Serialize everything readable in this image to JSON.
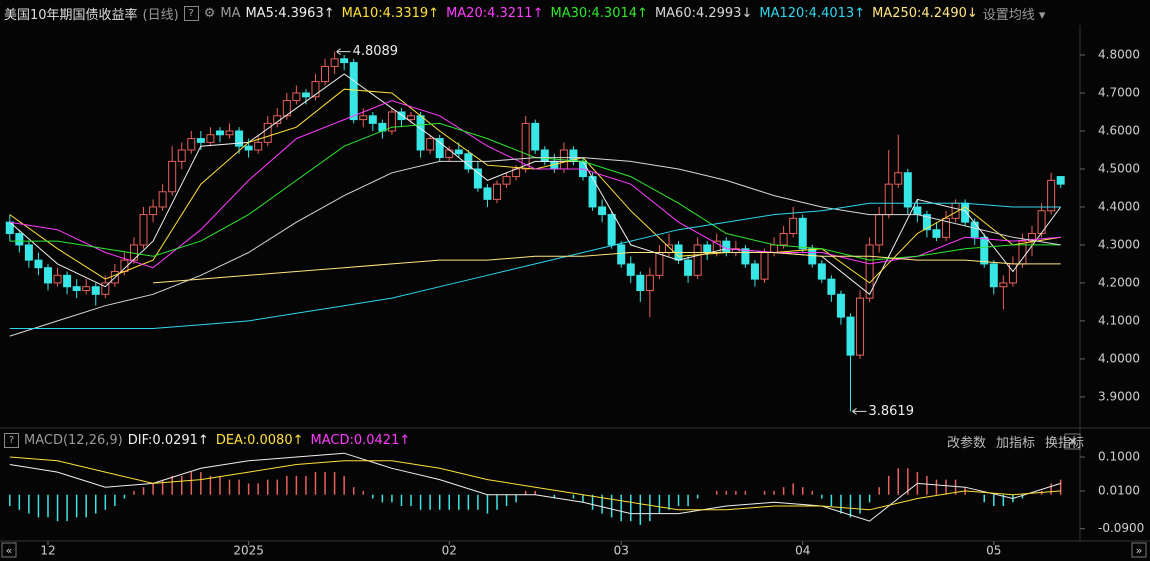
{
  "header": {
    "title": "美国10年期国债收益率",
    "period": "(日线)",
    "ma_label": "MA",
    "settings": "设置均线"
  },
  "buttons": [
    "改参数",
    "加指标",
    "换指标"
  ],
  "chart_data": [
    {
      "type": "candlestick",
      "up_color": "#e8615a",
      "down_color": "#38e6e6",
      "xlim": [
        -0.5,
        111.5
      ],
      "ylim": [
        3.826,
        4.879
      ],
      "yticks": [
        {
          "value": 4.8,
          "label": "4.8000"
        },
        {
          "value": 4.7,
          "label": "4.7000"
        },
        {
          "value": 4.6,
          "label": "4.6000"
        },
        {
          "value": 4.5,
          "label": "4.5000"
        },
        {
          "value": 4.4,
          "label": "4.4000"
        },
        {
          "value": 4.3,
          "label": "4.3000"
        },
        {
          "value": 4.2,
          "label": "4.2000"
        },
        {
          "value": 4.1,
          "label": "4.1000"
        },
        {
          "value": 4.0,
          "label": "4.0000"
        },
        {
          "value": 3.9,
          "label": "3.9000"
        }
      ],
      "xticks": [
        {
          "value": 4,
          "label": "12"
        },
        {
          "value": 25,
          "label": "2025"
        },
        {
          "value": 46,
          "label": "02"
        },
        {
          "value": 64,
          "label": "03"
        },
        {
          "value": 83,
          "label": "04"
        },
        {
          "value": 103,
          "label": "05"
        }
      ],
      "candles": [
        [
          4.36,
          4.38,
          4.31,
          4.33
        ],
        [
          4.33,
          4.34,
          4.28,
          4.3
        ],
        [
          4.3,
          4.31,
          4.24,
          4.26
        ],
        [
          4.26,
          4.28,
          4.22,
          4.24
        ],
        [
          4.24,
          4.25,
          4.18,
          4.2
        ],
        [
          4.2,
          4.24,
          4.19,
          4.22
        ],
        [
          4.22,
          4.23,
          4.17,
          4.19
        ],
        [
          4.19,
          4.21,
          4.16,
          4.18
        ],
        [
          4.18,
          4.21,
          4.17,
          4.19
        ],
        [
          4.19,
          4.2,
          4.14,
          4.17
        ],
        [
          4.17,
          4.22,
          4.16,
          4.2
        ],
        [
          4.2,
          4.25,
          4.19,
          4.23
        ],
        [
          4.23,
          4.28,
          4.22,
          4.26
        ],
        [
          4.26,
          4.32,
          4.25,
          4.3
        ],
        [
          4.3,
          4.4,
          4.29,
          4.38
        ],
        [
          4.38,
          4.42,
          4.36,
          4.4
        ],
        [
          4.4,
          4.46,
          4.39,
          4.44
        ],
        [
          4.44,
          4.56,
          4.43,
          4.52
        ],
        [
          4.52,
          4.57,
          4.5,
          4.55
        ],
        [
          4.55,
          4.6,
          4.54,
          4.58
        ],
        [
          4.58,
          4.6,
          4.55,
          4.57
        ],
        [
          4.57,
          4.61,
          4.56,
          4.59
        ],
        [
          4.6,
          4.61,
          4.57,
          4.59
        ],
        [
          4.59,
          4.62,
          4.58,
          4.6
        ],
        [
          4.6,
          4.61,
          4.54,
          4.56
        ],
        [
          4.56,
          4.58,
          4.53,
          4.55
        ],
        [
          4.55,
          4.59,
          4.54,
          4.57
        ],
        [
          4.57,
          4.64,
          4.56,
          4.62
        ],
        [
          4.62,
          4.66,
          4.61,
          4.64
        ],
        [
          4.64,
          4.7,
          4.63,
          4.68
        ],
        [
          4.68,
          4.72,
          4.67,
          4.7
        ],
        [
          4.7,
          4.71,
          4.67,
          4.69
        ],
        [
          4.69,
          4.75,
          4.68,
          4.73
        ],
        [
          4.73,
          4.79,
          4.72,
          4.77
        ],
        [
          4.77,
          4.8089,
          4.75,
          4.79
        ],
        [
          4.79,
          4.8,
          4.76,
          4.78
        ],
        [
          4.78,
          4.79,
          4.62,
          4.63
        ],
        [
          4.63,
          4.66,
          4.61,
          4.64
        ],
        [
          4.64,
          4.65,
          4.6,
          4.62
        ],
        [
          4.62,
          4.63,
          4.58,
          4.6
        ],
        [
          4.6,
          4.66,
          4.59,
          4.65
        ],
        [
          4.65,
          4.66,
          4.61,
          4.63
        ],
        [
          4.63,
          4.65,
          4.62,
          4.64
        ],
        [
          4.64,
          4.65,
          4.53,
          4.55
        ],
        [
          4.55,
          4.59,
          4.54,
          4.58
        ],
        [
          4.58,
          4.59,
          4.52,
          4.53
        ],
        [
          4.53,
          4.56,
          4.52,
          4.55
        ],
        [
          4.55,
          4.57,
          4.53,
          4.54
        ],
        [
          4.54,
          4.55,
          4.49,
          4.5
        ],
        [
          4.5,
          4.52,
          4.44,
          4.45
        ],
        [
          4.45,
          4.46,
          4.4,
          4.42
        ],
        [
          4.42,
          4.47,
          4.41,
          4.46
        ],
        [
          4.46,
          4.49,
          4.45,
          4.48
        ],
        [
          4.48,
          4.51,
          4.47,
          4.5
        ],
        [
          4.5,
          4.64,
          4.49,
          4.62
        ],
        [
          4.62,
          4.63,
          4.54,
          4.55
        ],
        [
          4.55,
          4.56,
          4.51,
          4.52
        ],
        [
          4.52,
          4.54,
          4.49,
          4.5
        ],
        [
          4.5,
          4.57,
          4.49,
          4.55
        ],
        [
          4.55,
          4.56,
          4.51,
          4.52
        ],
        [
          4.52,
          4.53,
          4.47,
          4.48
        ],
        [
          4.48,
          4.49,
          4.39,
          4.4
        ],
        [
          4.4,
          4.42,
          4.36,
          4.38
        ],
        [
          4.38,
          4.39,
          4.29,
          4.3
        ],
        [
          4.3,
          4.31,
          4.24,
          4.25
        ],
        [
          4.25,
          4.27,
          4.2,
          4.22
        ],
        [
          4.22,
          4.23,
          4.15,
          4.18
        ],
        [
          4.18,
          4.24,
          4.11,
          4.22
        ],
        [
          4.22,
          4.3,
          4.21,
          4.28
        ],
        [
          4.28,
          4.33,
          4.27,
          4.3
        ],
        [
          4.3,
          4.31,
          4.25,
          4.26
        ],
        [
          4.26,
          4.27,
          4.2,
          4.22
        ],
        [
          4.22,
          4.32,
          4.21,
          4.3
        ],
        [
          4.3,
          4.31,
          4.26,
          4.28
        ],
        [
          4.28,
          4.33,
          4.27,
          4.31
        ],
        [
          4.31,
          4.32,
          4.27,
          4.28
        ],
        [
          4.28,
          4.31,
          4.27,
          4.29
        ],
        [
          4.29,
          4.3,
          4.24,
          4.25
        ],
        [
          4.25,
          4.26,
          4.19,
          4.21
        ],
        [
          4.21,
          4.29,
          4.2,
          4.28
        ],
        [
          4.28,
          4.32,
          4.27,
          4.3
        ],
        [
          4.3,
          4.35,
          4.29,
          4.33
        ],
        [
          4.33,
          4.4,
          4.32,
          4.37
        ],
        [
          4.37,
          4.38,
          4.28,
          4.29
        ],
        [
          4.29,
          4.3,
          4.24,
          4.25
        ],
        [
          4.25,
          4.26,
          4.2,
          4.21
        ],
        [
          4.21,
          4.22,
          4.15,
          4.17
        ],
        [
          4.17,
          4.18,
          4.09,
          4.11
        ],
        [
          4.11,
          4.12,
          3.8619,
          4.01
        ],
        [
          4.01,
          4.18,
          4.0,
          4.16
        ],
        [
          4.16,
          4.32,
          4.15,
          4.3
        ],
        [
          4.3,
          4.4,
          4.28,
          4.38
        ],
        [
          4.38,
          4.55,
          4.37,
          4.46
        ],
        [
          4.46,
          4.59,
          4.45,
          4.49
        ],
        [
          4.49,
          4.5,
          4.38,
          4.4
        ],
        [
          4.4,
          4.42,
          4.36,
          4.38
        ],
        [
          4.38,
          4.39,
          4.32,
          4.34
        ],
        [
          4.34,
          4.36,
          4.31,
          4.32
        ],
        [
          4.32,
          4.39,
          4.31,
          4.37
        ],
        [
          4.37,
          4.42,
          4.36,
          4.41
        ],
        [
          4.41,
          4.42,
          4.35,
          4.36
        ],
        [
          4.36,
          4.37,
          4.3,
          4.32
        ],
        [
          4.32,
          4.33,
          4.24,
          4.25
        ],
        [
          4.25,
          4.26,
          4.17,
          4.19
        ],
        [
          4.19,
          4.22,
          4.13,
          4.2
        ],
        [
          4.2,
          4.27,
          4.19,
          4.25
        ],
        [
          4.25,
          4.33,
          4.24,
          4.31
        ],
        [
          4.31,
          4.35,
          4.27,
          4.33
        ],
        [
          4.33,
          4.41,
          4.32,
          4.39
        ],
        [
          4.39,
          4.49,
          4.38,
          4.47
        ],
        [
          4.48,
          4.48,
          4.45,
          4.46
        ]
      ],
      "ma_x": [
        0,
        5,
        10,
        15,
        20,
        25,
        30,
        35,
        40,
        45,
        50,
        55,
        60,
        65,
        70,
        75,
        80,
        85,
        90,
        95,
        100,
        105,
        110
      ],
      "series": [
        {
          "name": "MA5:4.3963",
          "arrow": "↑",
          "color": "#f0f0f0",
          "values": [
            4.36,
            4.25,
            4.19,
            4.31,
            4.56,
            4.57,
            4.66,
            4.75,
            4.66,
            4.57,
            4.47,
            4.52,
            4.52,
            4.3,
            4.26,
            4.29,
            4.28,
            4.27,
            4.17,
            4.42,
            4.39,
            4.23,
            4.4
          ]
        },
        {
          "name": "MA10:4.3319",
          "arrow": "↑",
          "color": "#ffe03a",
          "values": [
            4.38,
            4.29,
            4.21,
            4.26,
            4.46,
            4.57,
            4.61,
            4.71,
            4.7,
            4.6,
            4.51,
            4.5,
            4.53,
            4.39,
            4.27,
            4.28,
            4.28,
            4.29,
            4.2,
            4.33,
            4.4,
            4.3,
            4.32
          ]
        },
        {
          "name": "MA20:4.3211",
          "arrow": "↑",
          "color": "#ff3cff",
          "values": [
            4.36,
            4.34,
            4.28,
            4.24,
            4.34,
            4.47,
            4.58,
            4.63,
            4.68,
            4.64,
            4.56,
            4.5,
            4.5,
            4.46,
            4.36,
            4.29,
            4.28,
            4.28,
            4.25,
            4.27,
            4.32,
            4.31,
            4.32
          ]
        },
        {
          "name": "MA30:4.3014",
          "arrow": "↑",
          "color": "#2ee82e",
          "values": [
            4.31,
            4.31,
            4.29,
            4.27,
            4.31,
            4.38,
            4.47,
            4.56,
            4.61,
            4.62,
            4.58,
            4.53,
            4.52,
            4.48,
            4.41,
            4.33,
            4.3,
            4.29,
            4.26,
            4.27,
            4.29,
            4.3,
            4.3
          ]
        },
        {
          "name": "MA60:4.2993",
          "arrow": "↓",
          "color": "#d8d8d8",
          "values": [
            4.06,
            4.1,
            4.14,
            4.17,
            4.22,
            4.28,
            4.36,
            4.43,
            4.49,
            4.52,
            4.52,
            4.53,
            4.53,
            4.52,
            4.5,
            4.47,
            4.43,
            4.4,
            4.38,
            4.38,
            4.35,
            4.32,
            4.3
          ]
        },
        {
          "name": "MA120:4.4013",
          "arrow": "↑",
          "color": "#2ed7f0",
          "values": [
            4.08,
            4.08,
            4.08,
            4.08,
            4.09,
            4.1,
            4.12,
            4.14,
            4.16,
            4.19,
            4.22,
            4.25,
            4.28,
            4.31,
            4.34,
            4.36,
            4.38,
            4.39,
            4.41,
            4.41,
            4.41,
            4.4,
            4.4
          ]
        },
        {
          "name": "MA250:4.2490",
          "arrow": "↓",
          "color": "#ffe680",
          "values": [
            null,
            null,
            null,
            4.2,
            4.21,
            4.22,
            4.23,
            4.24,
            4.25,
            4.26,
            4.26,
            4.27,
            4.27,
            4.28,
            4.28,
            4.28,
            4.28,
            4.27,
            4.27,
            4.26,
            4.26,
            4.25,
            4.25
          ]
        }
      ],
      "annotations": [
        {
          "text": "4.8089",
          "x": 34,
          "y": 4.8089
        },
        {
          "text": "3.8619",
          "x": 88,
          "y": 3.8619
        }
      ]
    },
    {
      "type": "macd",
      "title": "MACD(12,26,9)",
      "ylim": [
        -0.12,
        0.145
      ],
      "yticks": [
        {
          "value": 0.1,
          "label": "0.1000"
        },
        {
          "value": 0.01,
          "label": "0.0100"
        },
        {
          "value": -0.09,
          "label": "-0.0900"
        }
      ],
      "up_color": "#e8615a",
      "down_color": "#38e6e6",
      "histogram_label": "MACD:0.0421",
      "histogram_arrow": "↑",
      "histogram_color": "#ff3cff",
      "histogram": [
        -0.03,
        -0.04,
        -0.05,
        -0.06,
        -0.06,
        -0.07,
        -0.07,
        -0.06,
        -0.06,
        -0.05,
        -0.04,
        -0.03,
        -0.01,
        0.01,
        0.02,
        0.03,
        0.04,
        0.05,
        0.05,
        0.06,
        0.06,
        0.05,
        0.05,
        0.04,
        0.04,
        0.03,
        0.03,
        0.04,
        0.04,
        0.05,
        0.05,
        0.05,
        0.06,
        0.06,
        0.06,
        0.05,
        0.02,
        0.01,
        -0.01,
        -0.02,
        -0.02,
        -0.03,
        -0.03,
        -0.04,
        -0.04,
        -0.04,
        -0.04,
        -0.04,
        -0.04,
        -0.04,
        -0.05,
        -0.04,
        -0.03,
        -0.02,
        0.01,
        0.01,
        0.0,
        -0.01,
        0.0,
        -0.01,
        -0.02,
        -0.04,
        -0.05,
        -0.06,
        -0.07,
        -0.07,
        -0.08,
        -0.07,
        -0.05,
        -0.04,
        -0.03,
        -0.03,
        -0.01,
        0.0,
        0.01,
        0.01,
        0.01,
        0.01,
        0.0,
        0.01,
        0.01,
        0.02,
        0.03,
        0.02,
        0.01,
        -0.01,
        -0.03,
        -0.05,
        -0.06,
        -0.05,
        -0.02,
        0.02,
        0.05,
        0.07,
        0.07,
        0.06,
        0.05,
        0.04,
        0.04,
        0.04,
        0.02,
        0.0,
        -0.02,
        -0.03,
        -0.03,
        -0.02,
        -0.01,
        0.0,
        0.01,
        0.03,
        0.04
      ],
      "x": [
        0,
        5,
        10,
        15,
        20,
        25,
        30,
        35,
        40,
        45,
        50,
        55,
        60,
        65,
        70,
        75,
        80,
        85,
        90,
        95,
        100,
        105,
        110
      ],
      "series": [
        {
          "name": "DIF:0.0291",
          "arrow": "↑",
          "color": "#f0f0f0",
          "values": [
            0.08,
            0.06,
            0.02,
            0.03,
            0.07,
            0.09,
            0.1,
            0.11,
            0.07,
            0.04,
            0.0,
            0.0,
            -0.02,
            -0.05,
            -0.05,
            -0.03,
            -0.02,
            -0.03,
            -0.07,
            0.03,
            0.02,
            -0.01,
            0.03
          ]
        },
        {
          "name": "DEA:0.0080",
          "arrow": "↑",
          "color": "#ffe03a",
          "values": [
            0.1,
            0.09,
            0.06,
            0.03,
            0.04,
            0.06,
            0.08,
            0.09,
            0.09,
            0.07,
            0.04,
            0.02,
            0.0,
            -0.02,
            -0.04,
            -0.04,
            -0.03,
            -0.03,
            -0.04,
            -0.01,
            0.01,
            0.0,
            0.01
          ]
        }
      ]
    }
  ]
}
